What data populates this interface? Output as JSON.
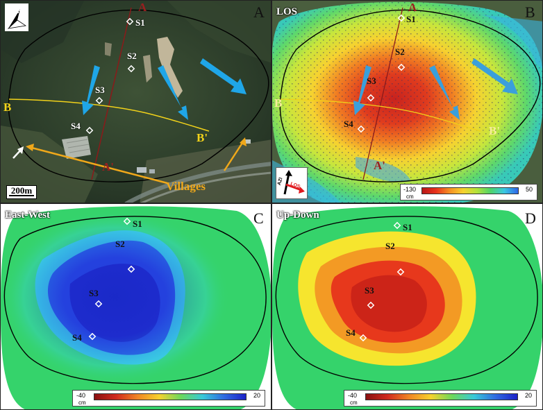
{
  "panels": {
    "a": {
      "letter": "A"
    },
    "b": {
      "letter": "B",
      "title": "LOS"
    },
    "c": {
      "letter": "C",
      "title": "East-West"
    },
    "d": {
      "letter": "D",
      "title": "Up-Down"
    }
  },
  "sites": [
    "S1",
    "S2",
    "S3",
    "S4"
  ],
  "profiles": {
    "a_start": "A",
    "a_end": "A'",
    "b_start": "B",
    "b_end": "B'"
  },
  "annotations": {
    "villages": "Villages",
    "scale": "200m",
    "north": "N"
  },
  "compass": {
    "azi": "AZI",
    "los": "LOS"
  },
  "colorbars": {
    "los": {
      "min": "-130",
      "max": "50",
      "unit": "cm"
    },
    "ew": {
      "min": "-40",
      "max": "20",
      "unit": "cm"
    },
    "ud": {
      "min": "-40",
      "max": "20",
      "unit": "cm"
    }
  },
  "colors": {
    "boundary": "#000000",
    "profile_a": "#8b1a1a",
    "profile_b": "#f2d21a",
    "arrow": "#1fa6e8",
    "villages": "#f0a81a"
  }
}
